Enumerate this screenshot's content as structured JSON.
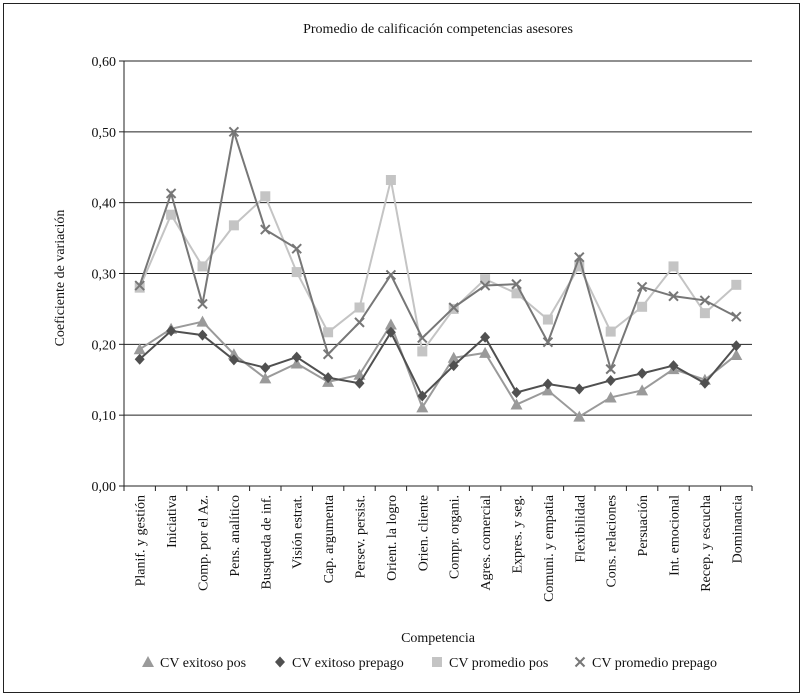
{
  "chart_data": {
    "type": "line",
    "title": "Promedio de calificación competencias asesores",
    "xlabel": "Competencia",
    "ylabel": "Coeficiente de variación",
    "ylim": [
      0,
      0.6
    ],
    "yticks": [
      "0,00",
      "0,10",
      "0,20",
      "0,30",
      "0,40",
      "0,50",
      "0,60"
    ],
    "ytick_values": [
      0,
      0.1,
      0.2,
      0.3,
      0.4,
      0.5,
      0.6
    ],
    "grid": "horizontal",
    "legend_position": "bottom",
    "categories": [
      "Planif. y gestión",
      "Iniciativa",
      "Comp. por el Az.",
      "Pens. analítico",
      "Busqueda de inf.",
      "Visión estrat.",
      "Cap. argumenta",
      "Persev. persist.",
      "Orient. la logro",
      "Orien. cliente",
      "Compr. organi.",
      "Agres. comercial",
      "Expres. y seg.",
      "Comuni. y empatia",
      "Flexibilidad",
      "Cons. relaciones",
      "Persuación",
      "Int. emocional",
      "Recep. y escucha",
      "Dominancia"
    ],
    "series": [
      {
        "name": "CV exitoso pos",
        "marker": "triangle",
        "color": "#9a9a9a",
        "values": [
          0.193,
          0.222,
          0.232,
          0.186,
          0.152,
          0.173,
          0.147,
          0.157,
          0.228,
          0.111,
          0.181,
          0.188,
          0.115,
          0.135,
          0.098,
          0.125,
          0.135,
          0.165,
          0.15,
          0.185
        ]
      },
      {
        "name": "CV exitoso prepago",
        "marker": "diamond",
        "color": "#505050",
        "values": [
          0.179,
          0.219,
          0.213,
          0.178,
          0.167,
          0.182,
          0.153,
          0.145,
          0.217,
          0.127,
          0.17,
          0.21,
          0.132,
          0.144,
          0.137,
          0.149,
          0.159,
          0.17,
          0.145,
          0.198
        ]
      },
      {
        "name": "CV promedio pos",
        "marker": "square",
        "color": "#c4c4c4",
        "values": [
          0.28,
          0.383,
          0.31,
          0.368,
          0.409,
          0.302,
          0.217,
          0.252,
          0.432,
          0.19,
          0.25,
          0.292,
          0.272,
          0.235,
          0.31,
          0.218,
          0.253,
          0.31,
          0.244,
          0.284
        ]
      },
      {
        "name": "CV promedio prepago",
        "marker": "x",
        "color": "#777777",
        "values": [
          0.283,
          0.413,
          0.257,
          0.5,
          0.362,
          0.335,
          0.186,
          0.231,
          0.298,
          0.209,
          0.252,
          0.283,
          0.285,
          0.203,
          0.323,
          0.165,
          0.281,
          0.268,
          0.262,
          0.239
        ]
      }
    ]
  }
}
